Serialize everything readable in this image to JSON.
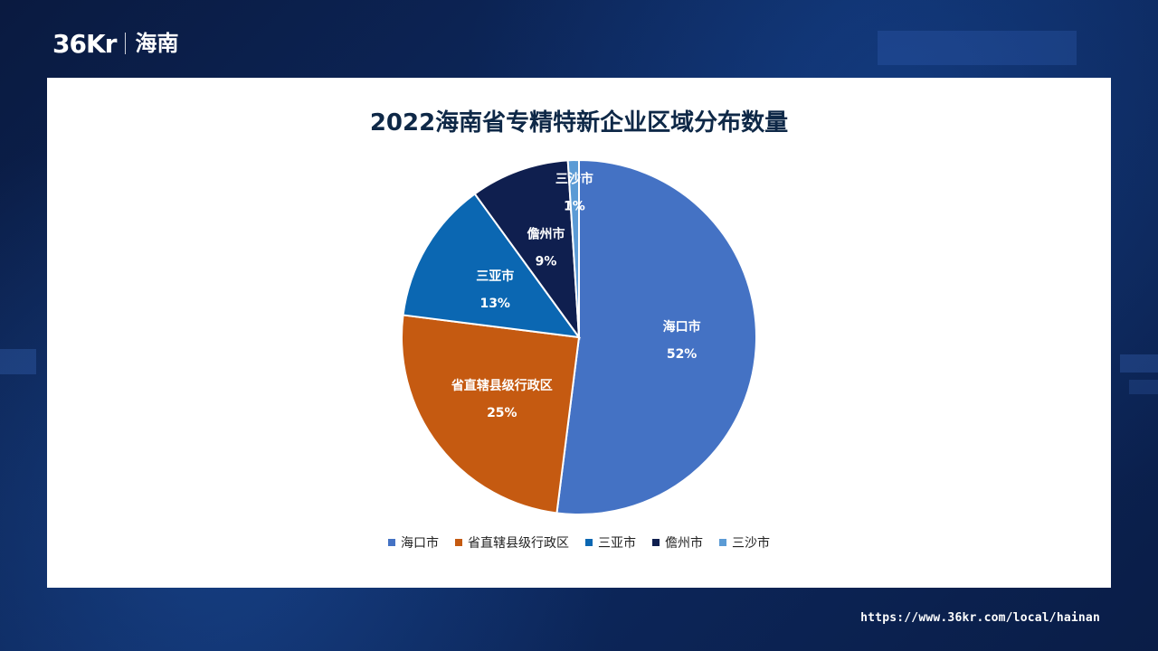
{
  "brand": {
    "logo_text": "36Kr",
    "name": "海南"
  },
  "footer": {
    "url": "https://www.36kr.com/local/hainan"
  },
  "chart_data": {
    "type": "pie",
    "title": "2022海南省专精特新企业区域分布数量",
    "slices": [
      {
        "label": "海口市",
        "value": 52,
        "value_label": "52%",
        "color": "#4472c4"
      },
      {
        "label": "省直辖县级行政区",
        "value": 25,
        "value_label": "25%",
        "color": "#c55a11"
      },
      {
        "label": "三亚市",
        "value": 13,
        "value_label": "13%",
        "color": "#0b67b2"
      },
      {
        "label": "儋州市",
        "value": 9,
        "value_label": "9%",
        "color": "#0f1f4f"
      },
      {
        "label": "三沙市",
        "value": 1,
        "value_label": "1%",
        "color": "#5b9bd5"
      }
    ],
    "legend": {
      "position": "bottom",
      "items": [
        {
          "label": "海口市",
          "color": "#4472c4"
        },
        {
          "label": "省直辖县级行政区",
          "color": "#c55a11"
        },
        {
          "label": "三亚市",
          "color": "#0b67b2"
        },
        {
          "label": "儋州市",
          "color": "#0f1f4f"
        },
        {
          "label": "三沙市",
          "color": "#5b9bd5"
        }
      ]
    }
  }
}
